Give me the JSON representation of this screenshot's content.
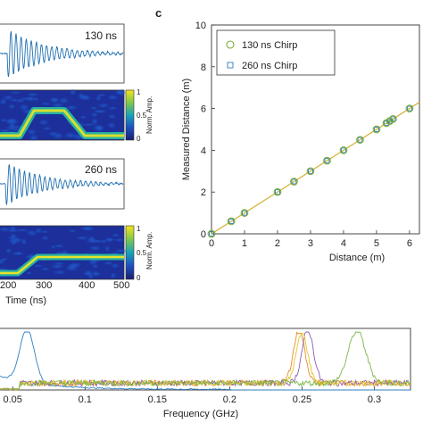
{
  "panel_label_c": "c",
  "colors": {
    "waveform": "#1f6fb2",
    "fit_line": "#d4b43a",
    "chirp130": "#7cae3a",
    "chirp260": "#2b7bbd",
    "orange": "#e8902e",
    "purple": "#8e5bb5",
    "yellow": "#e3c52a",
    "green": "#7ab648",
    "blue": "#2d7fc4"
  },
  "panel_a": {
    "waveform1_label": "130 ns",
    "waveform2_label": "260 ns",
    "colorbar1": {
      "title": "Norm. Amp.",
      "ticks": [
        "1",
        "0.5",
        "0"
      ]
    },
    "colorbar2": {
      "title": "Norm. Amp.",
      "ticks": [
        "1",
        "0.5",
        "0"
      ]
    },
    "xlabel": "Time (ns)",
    "xticks": [
      "200",
      "300",
      "400",
      "500"
    ]
  },
  "chart_data": [
    {
      "type": "scatter",
      "xlabel": "Distance (m)",
      "ylabel": "Measured Distance (m)",
      "xlim": [
        0,
        6.3
      ],
      "ylim": [
        0,
        10
      ],
      "xticks": [
        "0",
        "1",
        "2",
        "3",
        "4",
        "5",
        "6"
      ],
      "yticks": [
        "0",
        "2",
        "4",
        "6",
        "8",
        "10"
      ],
      "legend_position": "top-left",
      "series": [
        {
          "name": "130 ns Chirp",
          "marker": "circle",
          "x": [
            0,
            0.6,
            1.0,
            2.0,
            2.5,
            3.0,
            3.5,
            4.0,
            4.5,
            5.0,
            5.3,
            5.4,
            5.5,
            6.0
          ],
          "y": [
            0,
            0.6,
            1.0,
            2.0,
            2.5,
            3.0,
            3.5,
            4.0,
            4.5,
            5.0,
            5.3,
            5.4,
            5.5,
            6.0
          ]
        },
        {
          "name": "260 ns Chirp",
          "marker": "square",
          "x": [
            0,
            0.6,
            1.0,
            2.0,
            2.5,
            3.0,
            3.5,
            4.0,
            4.5,
            5.0,
            5.3,
            5.4,
            5.5,
            6.0
          ],
          "y": [
            0,
            0.6,
            1.0,
            2.0,
            2.5,
            3.0,
            3.5,
            4.0,
            4.5,
            5.0,
            5.3,
            5.4,
            5.5,
            6.0
          ]
        }
      ],
      "fit_line": {
        "x": [
          0,
          6.3
        ],
        "y": [
          0,
          6.3
        ]
      }
    },
    {
      "type": "line",
      "xlabel": "Frequency (GHz)",
      "xlim": [
        0.04,
        0.325
      ],
      "xticks": [
        "0.05",
        "0.1",
        "0.15",
        "0.2",
        "0.25",
        "0.3"
      ],
      "peaks": [
        {
          "color_key": "blue",
          "center": 0.06,
          "width": 0.005,
          "height": 0.92
        },
        {
          "color_key": "orange",
          "center": 0.248,
          "width": 0.004,
          "height": 0.9
        },
        {
          "color_key": "purple",
          "center": 0.254,
          "width": 0.004,
          "height": 0.92
        },
        {
          "color_key": "yellow",
          "center": 0.25,
          "width": 0.004,
          "height": 0.85
        },
        {
          "color_key": "green",
          "center": 0.288,
          "width": 0.006,
          "height": 0.9
        }
      ]
    }
  ]
}
